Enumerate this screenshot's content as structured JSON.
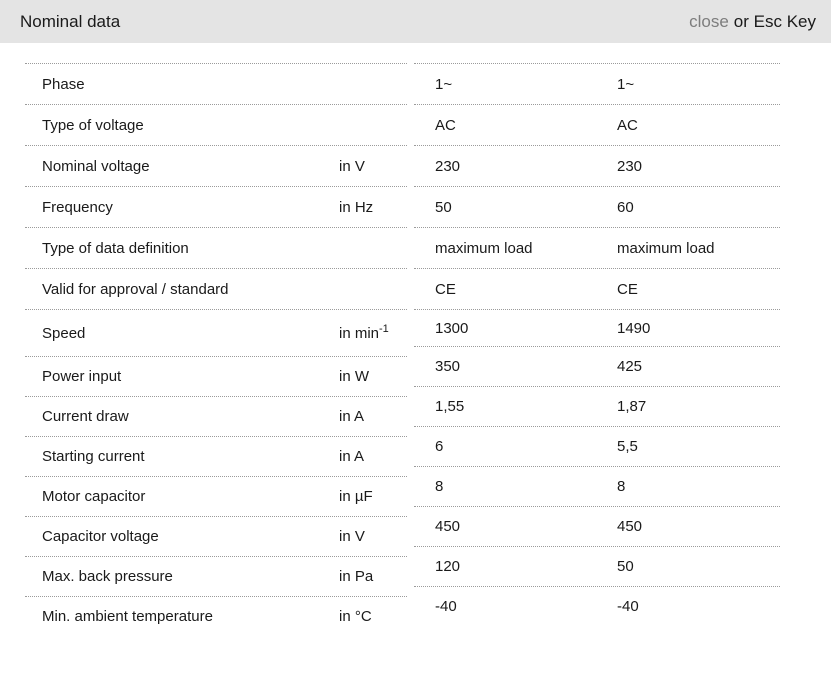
{
  "header": {
    "title": "Nominal data",
    "close_label": "close",
    "esc_hint": "or Esc Key"
  },
  "colors": {
    "header_bg": "#e4e4e4",
    "text": "#1a1a1a",
    "close_link": "#7d7d7d",
    "divider": "#9b9b9b"
  },
  "table": {
    "rows": [
      {
        "label": "Phase",
        "unit": "",
        "unit_sup": "",
        "values": [
          "1~",
          "1~"
        ]
      },
      {
        "label": "Type of voltage",
        "unit": "",
        "unit_sup": "",
        "values": [
          "AC",
          "AC"
        ]
      },
      {
        "label": "Nominal voltage",
        "unit": "in V",
        "unit_sup": "",
        "values": [
          "230",
          "230"
        ]
      },
      {
        "label": "Frequency",
        "unit": "in Hz",
        "unit_sup": "",
        "values": [
          "50",
          "60"
        ]
      },
      {
        "label": "Type of data definition",
        "unit": "",
        "unit_sup": "",
        "values": [
          "maximum load",
          "maximum load"
        ]
      },
      {
        "label": "Valid for approval / standard",
        "unit": "",
        "unit_sup": "",
        "values": [
          "CE",
          "CE"
        ]
      },
      {
        "label": "Speed",
        "unit": "in min",
        "unit_sup": "-1",
        "values": [
          "1300",
          "1490"
        ]
      },
      {
        "label": "Power input",
        "unit": "in W",
        "unit_sup": "",
        "values": [
          "350",
          "425"
        ]
      },
      {
        "label": "Current draw",
        "unit": "in A",
        "unit_sup": "",
        "values": [
          "1,55",
          "1,87"
        ]
      },
      {
        "label": "Starting current",
        "unit": "in A",
        "unit_sup": "",
        "values": [
          "6",
          "5,5"
        ]
      },
      {
        "label": "Motor capacitor",
        "unit": "in µF",
        "unit_sup": "",
        "values": [
          "8",
          "8"
        ]
      },
      {
        "label": "Capacitor voltage",
        "unit": "in V",
        "unit_sup": "",
        "values": [
          "450",
          "450"
        ]
      },
      {
        "label": "Max. back pressure",
        "unit": "in Pa",
        "unit_sup": "",
        "values": [
          "120",
          "50"
        ]
      },
      {
        "label": "Min. ambient temperature",
        "unit": "in °C",
        "unit_sup": "",
        "values": [
          "-40",
          "-40"
        ]
      }
    ]
  }
}
